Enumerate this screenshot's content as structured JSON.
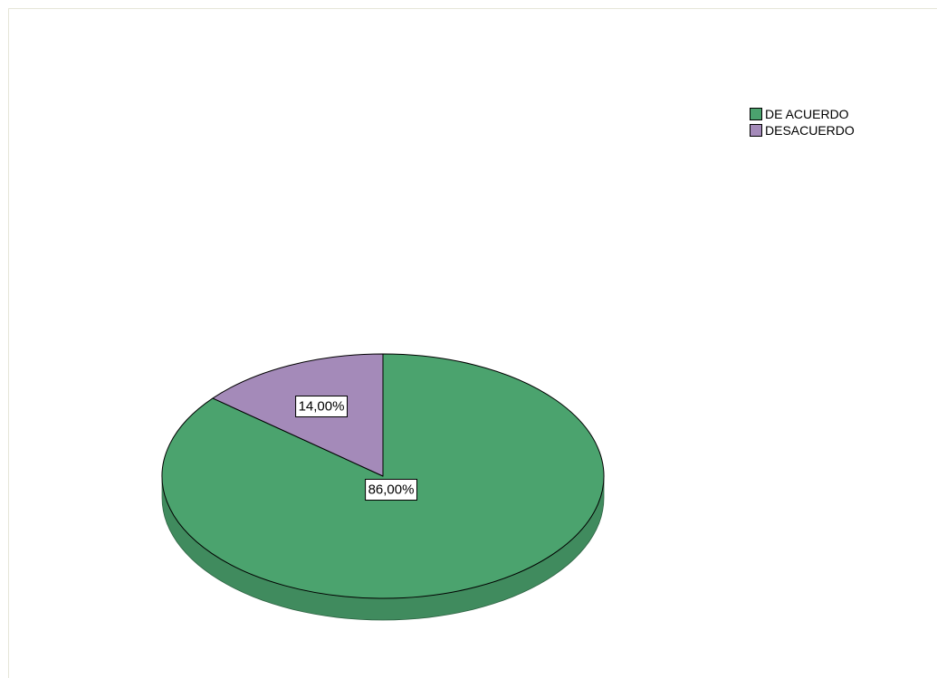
{
  "chart_data": {
    "type": "pie",
    "style": "3d",
    "title": "",
    "categories": [
      "DE ACUERDO",
      "DESACUERDO"
    ],
    "values": [
      86.0,
      14.0
    ],
    "data_labels": [
      "86,00%",
      "14,00%"
    ],
    "colors": [
      "#4ba36e",
      "#a48ab9"
    ],
    "legend": {
      "position": "top-right",
      "entries": [
        "DE ACUERDO",
        "DESACUERDO"
      ]
    }
  }
}
